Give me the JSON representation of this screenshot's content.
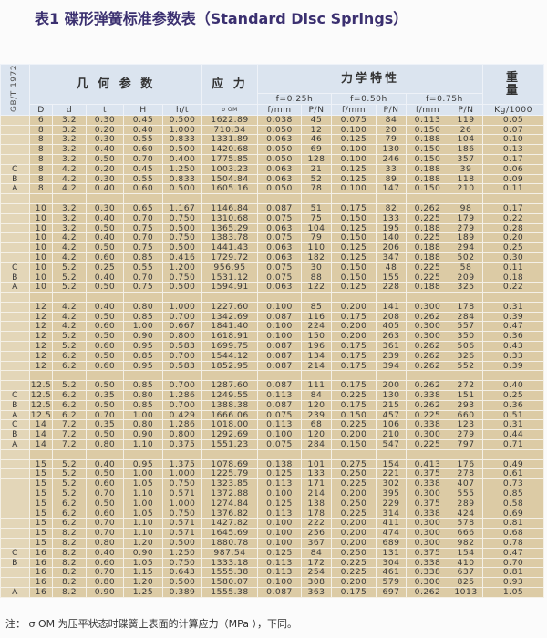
{
  "title": "表1 碟形弹簧标准参数表（Standard Disc Springs）",
  "header": {
    "standard": "GB/T 1972",
    "geometry": "几 何 参 数",
    "stress": "应 力",
    "mechanics": "力学特性",
    "weight": "重\n量",
    "f025": "f=0.25h",
    "f050": "f=0.50h",
    "f075": "f=0.75h",
    "cols": [
      "D",
      "d",
      "t",
      "H",
      "h/t",
      "σ OM",
      "f/mm",
      "P/N",
      "f/mm",
      "P/N",
      "f/mm",
      "P/N",
      "Kg/1000"
    ]
  },
  "groups": [
    [
      [
        "",
        "6",
        "3.2",
        "0.30",
        "0.45",
        "0.500",
        "1622.89",
        "0.038",
        "45",
        "0.075",
        "84",
        "0.113",
        "119",
        "0.05"
      ],
      [
        "",
        "8",
        "3.2",
        "0.20",
        "0.40",
        "1.000",
        "710.34",
        "0.050",
        "12",
        "0.100",
        "20",
        "0.150",
        "26",
        "0.07"
      ],
      [
        "",
        "8",
        "3.2",
        "0.30",
        "0.55",
        "0.833",
        "1331.89",
        "0.063",
        "46",
        "0.125",
        "79",
        "0.188",
        "104",
        "0.10"
      ],
      [
        "",
        "8",
        "3.2",
        "0.40",
        "0.60",
        "0.500",
        "1420.68",
        "0.050",
        "69",
        "0.100",
        "130",
        "0.150",
        "186",
        "0.13"
      ],
      [
        "",
        "8",
        "3.2",
        "0.50",
        "0.70",
        "0.400",
        "1775.85",
        "0.050",
        "128",
        "0.100",
        "246",
        "0.150",
        "357",
        "0.17"
      ],
      [
        "C",
        "8",
        "4.2",
        "0.20",
        "0.45",
        "1.250",
        "1003.23",
        "0.063",
        "21",
        "0.125",
        "33",
        "0.188",
        "39",
        "0.06"
      ],
      [
        "B",
        "8",
        "4.2",
        "0.30",
        "0.55",
        "0.833",
        "1504.84",
        "0.063",
        "52",
        "0.125",
        "89",
        "0.188",
        "118",
        "0.09"
      ],
      [
        "A",
        "8",
        "4.2",
        "0.40",
        "0.60",
        "0.500",
        "1605.16",
        "0.050",
        "78",
        "0.100",
        "147",
        "0.150",
        "210",
        "0.11"
      ]
    ],
    [
      [
        "",
        "10",
        "3.2",
        "0.30",
        "0.65",
        "1.167",
        "1146.84",
        "0.087",
        "51",
        "0.175",
        "82",
        "0.262",
        "98",
        "0.17"
      ],
      [
        "",
        "10",
        "3.2",
        "0.40",
        "0.70",
        "0.750",
        "1310.68",
        "0.075",
        "75",
        "0.150",
        "133",
        "0.225",
        "179",
        "0.22"
      ],
      [
        "",
        "10",
        "3.2",
        "0.50",
        "0.75",
        "0.500",
        "1365.29",
        "0.063",
        "104",
        "0.125",
        "195",
        "0.188",
        "279",
        "0.28"
      ],
      [
        "",
        "10",
        "4.2",
        "0.40",
        "0.70",
        "0.750",
        "1383.78",
        "0.075",
        "79",
        "0.150",
        "140",
        "0.225",
        "189",
        "0.20"
      ],
      [
        "",
        "10",
        "4.2",
        "0.50",
        "0.75",
        "0.500",
        "1441.43",
        "0.063",
        "110",
        "0.125",
        "206",
        "0.188",
        "294",
        "0.25"
      ],
      [
        "",
        "10",
        "4.2",
        "0.60",
        "0.85",
        "0.416",
        "1729.72",
        "0.063",
        "182",
        "0.125",
        "347",
        "0.188",
        "502",
        "0.30"
      ],
      [
        "C",
        "10",
        "5.2",
        "0.25",
        "0.55",
        "1.200",
        "956.95",
        "0.075",
        "30",
        "0.150",
        "48",
        "0.225",
        "58",
        "0.11"
      ],
      [
        "B",
        "10",
        "5.2",
        "0.40",
        "0.70",
        "0.750",
        "1531.12",
        "0.075",
        "88",
        "0.150",
        "155",
        "0.225",
        "209",
        "0.18"
      ],
      [
        "A",
        "10",
        "5.2",
        "0.50",
        "0.75",
        "0.500",
        "1594.91",
        "0.063",
        "122",
        "0.125",
        "228",
        "0.188",
        "325",
        "0.22"
      ]
    ],
    [
      [
        "",
        "12",
        "4.2",
        "0.40",
        "0.80",
        "1.000",
        "1227.60",
        "0.100",
        "85",
        "0.200",
        "141",
        "0.300",
        "178",
        "0.31"
      ],
      [
        "",
        "12",
        "4.2",
        "0.50",
        "0.85",
        "0.700",
        "1342.69",
        "0.087",
        "116",
        "0.175",
        "208",
        "0.262",
        "284",
        "0.39"
      ],
      [
        "",
        "12",
        "4.2",
        "0.60",
        "1.00",
        "0.667",
        "1841.40",
        "0.100",
        "224",
        "0.200",
        "405",
        "0.300",
        "557",
        "0.47"
      ],
      [
        "",
        "12",
        "5.2",
        "0.50",
        "0.90",
        "0.800",
        "1618.91",
        "0.100",
        "150",
        "0.200",
        "263",
        "0.300",
        "350",
        "0.36"
      ],
      [
        "",
        "12",
        "5.2",
        "0.60",
        "0.95",
        "0.583",
        "1699.75",
        "0.087",
        "196",
        "0.175",
        "361",
        "0.262",
        "506",
        "0.43"
      ],
      [
        "",
        "12",
        "6.2",
        "0.50",
        "0.85",
        "0.700",
        "1544.12",
        "0.087",
        "134",
        "0.175",
        "239",
        "0.262",
        "326",
        "0.33"
      ],
      [
        "",
        "12",
        "6.2",
        "0.60",
        "0.95",
        "0.583",
        "1852.95",
        "0.087",
        "214",
        "0.175",
        "394",
        "0.262",
        "552",
        "0.39"
      ]
    ],
    [
      [
        "",
        "12.5",
        "5.2",
        "0.50",
        "0.85",
        "0.700",
        "1287.60",
        "0.087",
        "111",
        "0.175",
        "200",
        "0.262",
        "272",
        "0.40"
      ],
      [
        "C",
        "12.5",
        "6.2",
        "0.35",
        "0.80",
        "1.286",
        "1249.55",
        "0.113",
        "84",
        "0.225",
        "130",
        "0.338",
        "151",
        "0.25"
      ],
      [
        "B",
        "12.5",
        "6.2",
        "0.50",
        "0.85",
        "0.700",
        "1388.38",
        "0.087",
        "120",
        "0.175",
        "215",
        "0.262",
        "293",
        "0.36"
      ],
      [
        "A",
        "12.5",
        "6.2",
        "0.70",
        "1.00",
        "0.429",
        "1666.06",
        "0.075",
        "239",
        "0.150",
        "457",
        "0.225",
        "660",
        "0.51"
      ],
      [
        "C",
        "14",
        "7.2",
        "0.35",
        "0.80",
        "1.286",
        "1018.00",
        "0.113",
        "68",
        "0.225",
        "106",
        "0.338",
        "123",
        "0.31"
      ],
      [
        "B",
        "14",
        "7.2",
        "0.50",
        "0.90",
        "0.800",
        "1292.69",
        "0.100",
        "120",
        "0.200",
        "210",
        "0.300",
        "279",
        "0.44"
      ],
      [
        "A",
        "14",
        "7.2",
        "0.80",
        "1.10",
        "0.375",
        "1551.23",
        "0.075",
        "284",
        "0.150",
        "547",
        "0.225",
        "797",
        "0.71"
      ]
    ],
    [
      [
        "",
        "15",
        "5.2",
        "0.40",
        "0.95",
        "1.375",
        "1078.69",
        "0.138",
        "101",
        "0.275",
        "154",
        "0.413",
        "176",
        "0.49"
      ],
      [
        "",
        "15",
        "5.2",
        "0.50",
        "1.00",
        "1.000",
        "1225.79",
        "0.125",
        "133",
        "0.250",
        "221",
        "0.375",
        "278",
        "0.61"
      ],
      [
        "",
        "15",
        "5.2",
        "0.60",
        "1.05",
        "0.750",
        "1323.85",
        "0.113",
        "171",
        "0.225",
        "302",
        "0.338",
        "407",
        "0.73"
      ],
      [
        "",
        "15",
        "5.2",
        "0.70",
        "1.10",
        "0.571",
        "1372.88",
        "0.100",
        "214",
        "0.200",
        "395",
        "0.300",
        "555",
        "0.85"
      ],
      [
        "",
        "15",
        "6.2",
        "0.50",
        "1.00",
        "1.000",
        "1274.84",
        "0.125",
        "138",
        "0.250",
        "229",
        "0.375",
        "289",
        "0.58"
      ],
      [
        "",
        "15",
        "6.2",
        "0.60",
        "1.05",
        "0.750",
        "1376.82",
        "0.113",
        "178",
        "0.225",
        "314",
        "0.338",
        "424",
        "0.69"
      ],
      [
        "",
        "15",
        "6.2",
        "0.70",
        "1.10",
        "0.571",
        "1427.82",
        "0.100",
        "222",
        "0.200",
        "411",
        "0.300",
        "578",
        "0.81"
      ],
      [
        "",
        "15",
        "8.2",
        "0.70",
        "1.10",
        "0.571",
        "1645.69",
        "0.100",
        "256",
        "0.200",
        "474",
        "0.300",
        "666",
        "0.68"
      ],
      [
        "",
        "15",
        "8.2",
        "0.80",
        "1.20",
        "0.500",
        "1880.78",
        "0.100",
        "367",
        "0.200",
        "689",
        "0.300",
        "982",
        "0.78"
      ],
      [
        "C",
        "16",
        "8.2",
        "0.40",
        "0.90",
        "1.250",
        "987.54",
        "0.125",
        "84",
        "0.250",
        "131",
        "0.375",
        "154",
        "0.47"
      ],
      [
        "B",
        "16",
        "8.2",
        "0.60",
        "1.05",
        "0.750",
        "1333.18",
        "0.113",
        "172",
        "0.225",
        "304",
        "0.338",
        "410",
        "0.70"
      ],
      [
        "",
        "16",
        "8.2",
        "0.70",
        "1.15",
        "0.643",
        "1555.38",
        "0.113",
        "254",
        "0.225",
        "461",
        "0.338",
        "637",
        "0.81"
      ],
      [
        "",
        "16",
        "8.2",
        "0.80",
        "1.20",
        "0.500",
        "1580.07",
        "0.100",
        "308",
        "0.200",
        "579",
        "0.300",
        "825",
        "0.93"
      ],
      [
        "A",
        "16",
        "8.2",
        "0.90",
        "1.25",
        "0.389",
        "1555.38",
        "0.087",
        "363",
        "0.175",
        "697",
        "0.262",
        "1013",
        "1.05"
      ]
    ]
  ],
  "note": "注： σ OM 为压平状态时碟簧上表面的计算应力（MPa ），下同。"
}
